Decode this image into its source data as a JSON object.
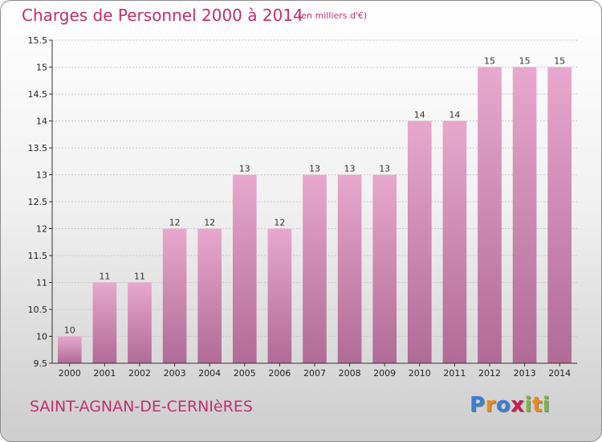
{
  "title": "Charges de Personnel 2000 à 2014",
  "subtitle": "(en milliers d'€)",
  "commune": "SAINT-AGNAN-DE-CERNIèRES",
  "logo": {
    "text": "Proxiti",
    "letter_colors": [
      "#3a7fd0",
      "#e98b1d",
      "#3a7fd0",
      "#c81d4f",
      "#7ab648",
      "#e98b1d",
      "#7ab648"
    ]
  },
  "colors": {
    "bar_top": "#e8a8ce",
    "bar_bottom": "#b06b96",
    "title": "#c22f6e"
  },
  "chart_data": {
    "type": "bar",
    "categories": [
      "2000",
      "2001",
      "2002",
      "2003",
      "2004",
      "2005",
      "2006",
      "2007",
      "2008",
      "2009",
      "2010",
      "2011",
      "2012",
      "2013",
      "2014"
    ],
    "values": [
      10,
      11,
      11,
      12,
      12,
      13,
      12,
      13,
      13,
      13,
      14,
      14,
      15,
      15,
      15
    ],
    "data_labels": [
      "10",
      "11",
      "11",
      "12",
      "12",
      "13",
      "12",
      "13",
      "13",
      "13",
      "14",
      "14",
      "15",
      "15",
      "15"
    ],
    "yticks": [
      "9.5",
      "10",
      "10.5",
      "11",
      "11.5",
      "12",
      "12.5",
      "13",
      "13.5",
      "14",
      "14.5",
      "15",
      "15.5"
    ],
    "ylim": [
      9.5,
      15.5
    ],
    "grid": true,
    "legend": "none"
  }
}
